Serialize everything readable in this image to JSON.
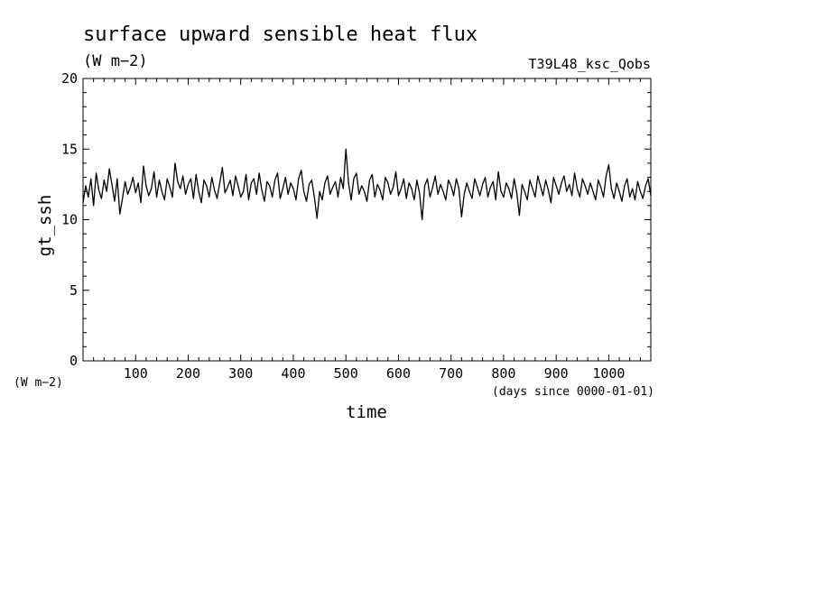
{
  "chart_data": {
    "type": "line",
    "title": "surface upward sensible heat flux",
    "title_units": "(W m−2)",
    "experiment": "T39L48_ksc_Qobs",
    "xlabel": "time",
    "x_units": "(days since 0000-01-01)",
    "ylabel": "gt_ssh",
    "y_units": "(W m−2)",
    "xlim": [
      0,
      1080
    ],
    "ylim": [
      0,
      20
    ],
    "x_ticks": [
      "100",
      "200",
      "300",
      "400",
      "500",
      "600",
      "700",
      "800",
      "900",
      "1000"
    ],
    "y_ticks": [
      "0",
      "5",
      "10",
      "15",
      "20"
    ],
    "grid": false,
    "series": [
      {
        "color": "#000000",
        "x": [
          0,
          5,
          10,
          15,
          20,
          25,
          30,
          35,
          40,
          45,
          50,
          55,
          60,
          65,
          70,
          75,
          80,
          85,
          90,
          95,
          100,
          105,
          110,
          115,
          120,
          125,
          130,
          135,
          140,
          145,
          150,
          155,
          160,
          165,
          170,
          175,
          180,
          185,
          190,
          195,
          200,
          205,
          210,
          215,
          220,
          225,
          230,
          235,
          240,
          245,
          250,
          255,
          260,
          265,
          270,
          275,
          280,
          285,
          290,
          295,
          300,
          305,
          310,
          315,
          320,
          325,
          330,
          335,
          340,
          345,
          350,
          355,
          360,
          365,
          370,
          375,
          380,
          385,
          390,
          395,
          400,
          405,
          410,
          415,
          420,
          425,
          430,
          435,
          440,
          445,
          450,
          455,
          460,
          465,
          470,
          475,
          480,
          485,
          490,
          495,
          500,
          505,
          510,
          515,
          520,
          525,
          530,
          535,
          540,
          545,
          550,
          555,
          560,
          565,
          570,
          575,
          580,
          585,
          590,
          595,
          600,
          605,
          610,
          615,
          620,
          625,
          630,
          635,
          640,
          645,
          650,
          655,
          660,
          665,
          670,
          675,
          680,
          685,
          690,
          695,
          700,
          705,
          710,
          715,
          720,
          725,
          730,
          735,
          740,
          745,
          750,
          755,
          760,
          765,
          770,
          775,
          780,
          785,
          790,
          795,
          800,
          805,
          810,
          815,
          820,
          825,
          830,
          835,
          840,
          845,
          850,
          855,
          860,
          865,
          870,
          875,
          880,
          885,
          890,
          895,
          900,
          905,
          910,
          915,
          920,
          925,
          930,
          935,
          940,
          945,
          950,
          955,
          960,
          965,
          970,
          975,
          980,
          985,
          990,
          995,
          1000,
          1005,
          1010,
          1015,
          1020,
          1025,
          1030,
          1035,
          1040,
          1045,
          1050,
          1055,
          1060,
          1065,
          1070,
          1075,
          1080
        ],
        "values": [
          11.2,
          12.4,
          11.6,
          12.9,
          11.0,
          13.3,
          12.1,
          11.5,
          12.8,
          12.0,
          13.6,
          12.5,
          11.3,
          12.9,
          10.4,
          11.5,
          12.7,
          11.8,
          12.3,
          13.0,
          11.9,
          12.6,
          11.2,
          13.8,
          12.4,
          11.7,
          12.2,
          13.4,
          11.6,
          12.8,
          12.0,
          11.4,
          12.9,
          12.3,
          11.6,
          14.0,
          12.7,
          12.2,
          13.1,
          11.8,
          12.5,
          12.9,
          11.5,
          13.2,
          12.0,
          11.2,
          12.8,
          12.4,
          11.6,
          13.0,
          12.1,
          11.5,
          12.6,
          13.7,
          11.9,
          12.3,
          12.8,
          11.7,
          13.1,
          12.4,
          11.6,
          12.0,
          13.2,
          11.4,
          12.6,
          12.9,
          11.8,
          13.3,
          12.1,
          11.3,
          12.7,
          12.4,
          11.6,
          12.8,
          13.3,
          11.5,
          12.2,
          13.0,
          11.8,
          12.6,
          12.2,
          11.4,
          12.9,
          13.5,
          12.0,
          11.3,
          12.5,
          12.8,
          11.6,
          10.1,
          12.0,
          11.4,
          12.6,
          13.1,
          11.8,
          12.3,
          12.7,
          11.6,
          13.0,
          12.2,
          15.0,
          12.6,
          11.4,
          12.9,
          13.3,
          11.8,
          12.4,
          12.0,
          11.3,
          12.8,
          13.2,
          11.6,
          12.5,
          12.1,
          11.4,
          13.0,
          12.6,
          11.8,
          12.3,
          13.4,
          11.7,
          12.2,
          12.9,
          11.5,
          12.6,
          12.2,
          11.4,
          12.8,
          11.9,
          10.0,
          12.4,
          12.9,
          11.6,
          12.3,
          13.1,
          11.8,
          12.5,
          12.0,
          11.4,
          12.8,
          12.4,
          11.7,
          12.9,
          12.2,
          10.2,
          11.8,
          12.6,
          12.0,
          11.5,
          12.9,
          12.3,
          11.7,
          12.5,
          13.0,
          11.6,
          12.3,
          12.7,
          11.4,
          13.4,
          12.0,
          11.6,
          12.6,
          12.2,
          11.5,
          12.9,
          11.9,
          10.3,
          12.5,
          12.0,
          11.4,
          12.8,
          12.2,
          11.6,
          13.1,
          12.4,
          11.7,
          12.8,
          12.1,
          11.2,
          13.0,
          12.4,
          11.8,
          12.6,
          13.1,
          12.0,
          12.5,
          11.7,
          13.3,
          12.2,
          11.6,
          12.9,
          12.4,
          11.8,
          12.6,
          12.0,
          11.4,
          12.8,
          12.3,
          11.6,
          13.1,
          13.9,
          12.2,
          11.5,
          12.6,
          12.0,
          11.3,
          12.4,
          12.9,
          11.6,
          12.2,
          11.4,
          12.7,
          12.0,
          11.5,
          12.4,
          12.9,
          11.7
        ]
      }
    ]
  }
}
